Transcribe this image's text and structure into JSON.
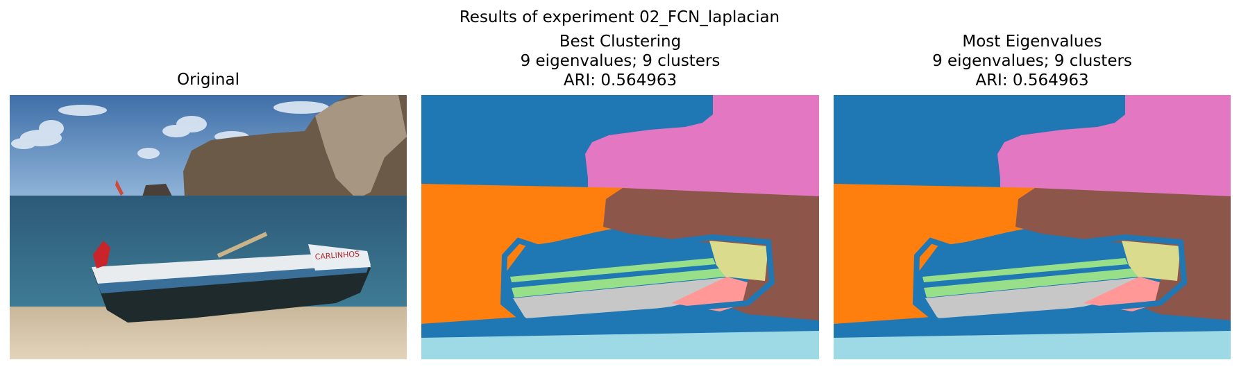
{
  "figure": {
    "suptitle": "Results of experiment 02_FCN_laplacian"
  },
  "chart_data": [
    {
      "type": "image",
      "title": "Original",
      "content": "photograph of a fishing boat with CARLINHOS written on the hull, on a beach with sea and cliffs",
      "boat_text": "CARLINHOS"
    },
    {
      "type": "heatmap",
      "title_lines": [
        "Best Clustering",
        "9 eigenvalues; 9 clusters",
        "ARI: 0.564963"
      ],
      "eigenvalues": 9,
      "clusters": 9,
      "ari": 0.564963
    },
    {
      "type": "heatmap",
      "title_lines": [
        "Most Eigenvalues",
        "9 eigenvalues; 9 clusters",
        "ARI: 0.564963"
      ],
      "eigenvalues": 9,
      "clusters": 9,
      "ari": 0.564963
    }
  ],
  "colors": {
    "blue": "#1f77b4",
    "orange": "#ff7f0e",
    "green": "#98df8a",
    "pink": "#e377c2",
    "brown": "#8c564b",
    "gray": "#c7c7c7",
    "khaki": "#dbdb8d",
    "salmon": "#ff9896",
    "cyan": "#9edae5"
  }
}
